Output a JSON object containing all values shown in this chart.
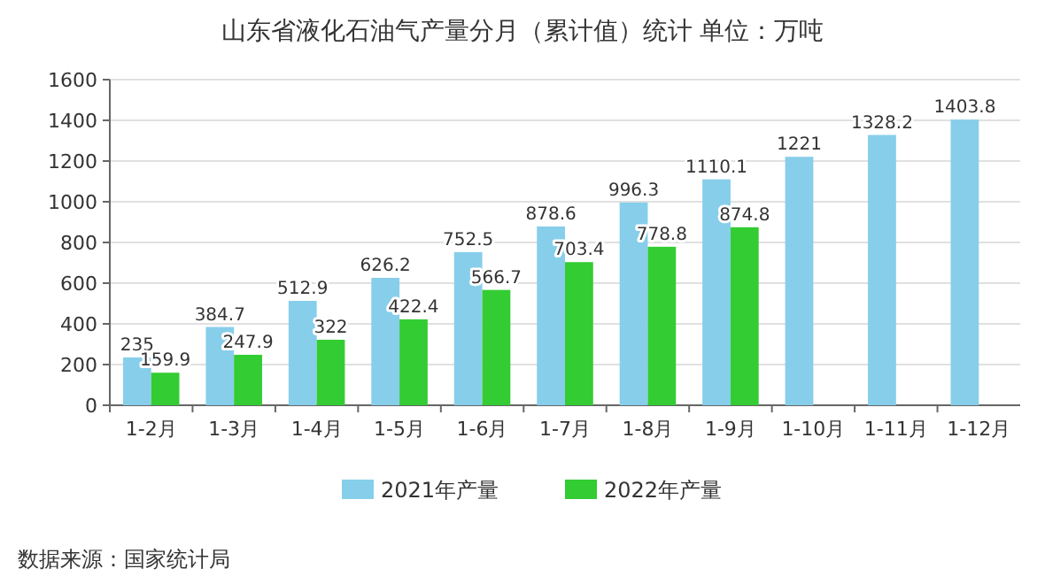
{
  "chart_data": {
    "type": "bar",
    "title": "山东省液化石油气产量分月（累计值）统计  单位：万吨",
    "categories": [
      "1-2月",
      "1-3月",
      "1-4月",
      "1-5月",
      "1-6月",
      "1-7月",
      "1-8月",
      "1-9月",
      "1-10月",
      "1-11月",
      "1-12月"
    ],
    "series": [
      {
        "name": "2021年产量",
        "color": "#87ceeb",
        "values": [
          235,
          384.7,
          512.9,
          626.2,
          752.5,
          878.6,
          996.3,
          1110.1,
          1221,
          1328.2,
          1403.8
        ]
      },
      {
        "name": "2022年产量",
        "color": "#33cc33",
        "values": [
          159.9,
          247.9,
          322,
          422.4,
          566.7,
          703.4,
          778.8,
          874.8,
          null,
          null,
          null
        ]
      }
    ],
    "ylim": [
      0,
      1600
    ],
    "yticks": [
      0,
      200,
      400,
      600,
      800,
      1000,
      1200,
      1400,
      1600
    ],
    "grid": "y",
    "legend": "bottom",
    "data_labels": true,
    "annotations": [
      "数据来源：国家统计局"
    ]
  }
}
